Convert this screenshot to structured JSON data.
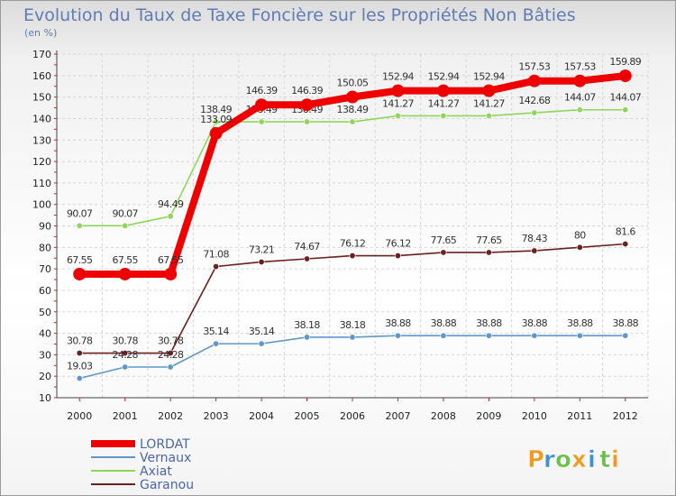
{
  "chart_data": {
    "type": "line",
    "title": "Evolution du Taux de Taxe Foncière sur les Propriétés Non Bâties",
    "subtitle": "(en %)",
    "xlabel": "",
    "ylabel": "",
    "ylim": [
      10,
      170
    ],
    "yticks": [
      10,
      20,
      30,
      40,
      50,
      60,
      70,
      80,
      90,
      100,
      110,
      120,
      130,
      140,
      150,
      160,
      170
    ],
    "categories": [
      "2000",
      "2001",
      "2002",
      "2003",
      "2004",
      "2005",
      "2006",
      "2007",
      "2008",
      "2009",
      "2010",
      "2011",
      "2012"
    ],
    "series": [
      {
        "name": "Garanou",
        "color": "#6b1f1f",
        "values": [
          30.78,
          30.78,
          30.78,
          71.08,
          73.21,
          74.67,
          76.12,
          76.12,
          77.65,
          77.65,
          78.43,
          80,
          81.6
        ],
        "labels": [
          "30.78",
          "30.78",
          "30.78",
          "71.08",
          "73.21",
          "74.67",
          "76.12",
          "76.12",
          "77.65",
          "77.65",
          "78.43",
          "80",
          "81.6"
        ]
      },
      {
        "name": "Vernaux",
        "color": "#5f98c8",
        "values": [
          19.03,
          24.28,
          24.28,
          35.14,
          35.14,
          38.18,
          38.18,
          38.88,
          38.88,
          38.88,
          38.88,
          38.88,
          38.88
        ],
        "labels": [
          "19.03",
          "24.28",
          "24.28",
          "35.14",
          "35.14",
          "38.18",
          "38.18",
          "38.88",
          "38.88",
          "38.88",
          "38.88",
          "38.88",
          "38.88"
        ]
      },
      {
        "name": "Axiat",
        "color": "#8fd65a",
        "values": [
          90.07,
          90.07,
          94.49,
          138.49,
          138.49,
          138.49,
          138.49,
          141.27,
          141.27,
          141.27,
          142.68,
          144.07,
          144.07
        ],
        "labels": [
          "90.07",
          "90.07",
          "94.49",
          "138.49",
          "138.49",
          "138.49",
          "138.49",
          "141.27",
          "141.27",
          "141.27",
          "142.68",
          "144.07",
          "144.07"
        ]
      },
      {
        "name": "LORDAT",
        "color": "#ee0000",
        "values": [
          67.55,
          67.55,
          67.55,
          133.09,
          146.39,
          146.39,
          150.05,
          152.94,
          152.94,
          152.94,
          157.53,
          157.53,
          159.89
        ],
        "labels": [
          "67.55",
          "67.55",
          "67.55",
          "133.09",
          "146.39",
          "146.39",
          "150.05",
          "152.94",
          "152.94",
          "152.94",
          "157.53",
          "157.53",
          "159.89"
        ]
      }
    ],
    "legend": [
      "LORDAT",
      "Vernaux",
      "Axiat",
      "Garanou"
    ],
    "legend_position": "bottom-left",
    "grid": true
  },
  "brand": {
    "letters": [
      "P",
      "r",
      "o",
      "x",
      "i",
      "t",
      "i"
    ],
    "colors": [
      "#f39a1e",
      "#3d8fd6",
      "#6cc04a",
      "#f39a1e",
      "#3d8fd6",
      "#6cc04a",
      "#f39a1e"
    ]
  }
}
